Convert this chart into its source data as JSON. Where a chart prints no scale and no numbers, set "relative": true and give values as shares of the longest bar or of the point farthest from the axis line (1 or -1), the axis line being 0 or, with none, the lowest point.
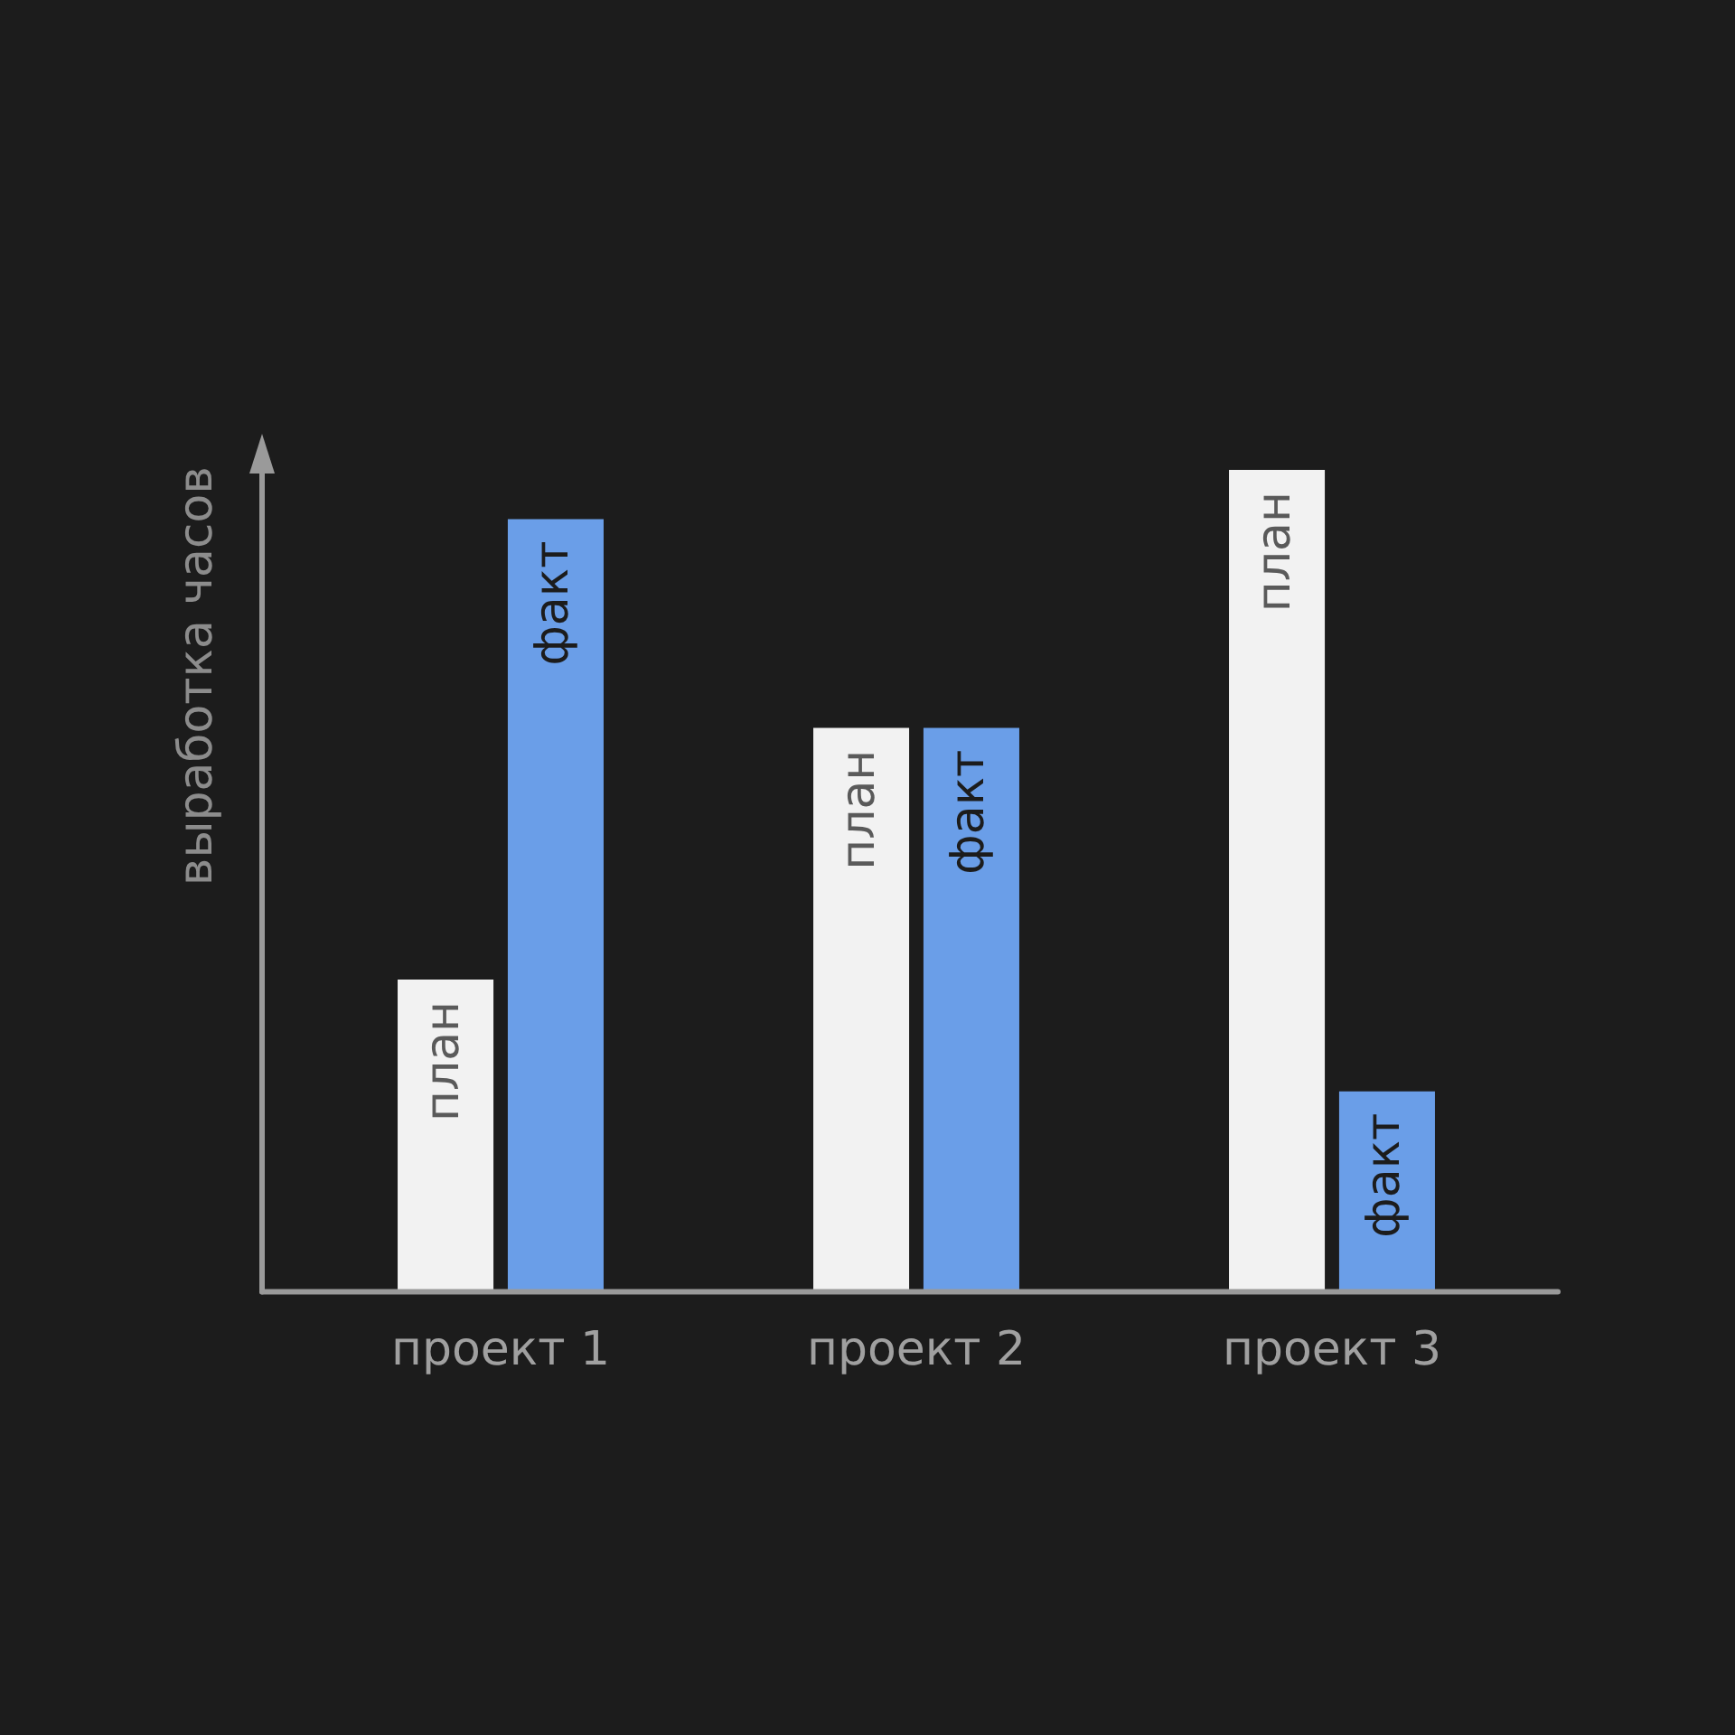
{
  "chart_data": {
    "type": "bar",
    "ylabel": "выработка часов",
    "relative": true,
    "categories": [
      "проект 1",
      "проект 2",
      "проект 3"
    ],
    "series": [
      {
        "name": "план",
        "color": "#f2f2f2",
        "values": [
          0.38,
          0.686,
          1
        ]
      },
      {
        "name": "факт",
        "color": "#6a9ee8",
        "values": [
          0.94,
          0.686,
          0.244
        ]
      }
    ]
  }
}
